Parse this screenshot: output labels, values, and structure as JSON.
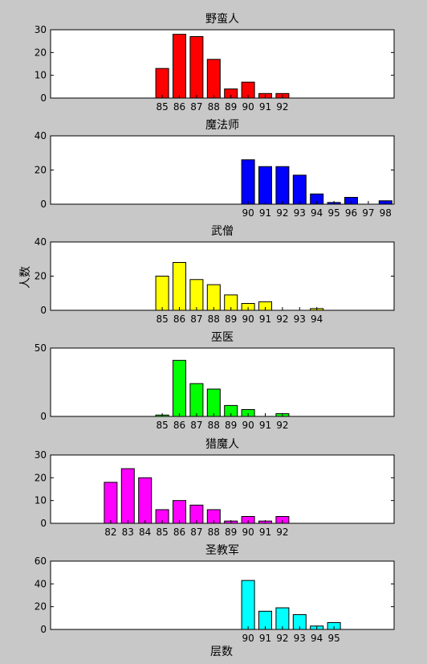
{
  "figure": {
    "ylabel": "人数",
    "xlabel": "层数",
    "background": "#c8c8c8"
  },
  "chart_data": [
    {
      "type": "bar",
      "title": "野蛮人",
      "color": "#ff0000",
      "ylim": [
        0,
        30
      ],
      "yticks": [
        0,
        10,
        20,
        30
      ],
      "xlim": [
        78.5,
        98.5
      ],
      "categories": [
        "85",
        "86",
        "87",
        "88",
        "89",
        "90",
        "91",
        "92"
      ],
      "x": [
        85,
        86,
        87,
        88,
        89,
        90,
        91,
        92
      ],
      "values": [
        13,
        28,
        27,
        17,
        4,
        7,
        2,
        2
      ]
    },
    {
      "type": "bar",
      "title": "魔法师",
      "color": "#0000ff",
      "ylim": [
        0,
        40
      ],
      "yticks": [
        0,
        20,
        40
      ],
      "xlim": [
        78.5,
        98.5
      ],
      "categories": [
        "90",
        "91",
        "92",
        "93",
        "94",
        "95",
        "96",
        "97",
        "98"
      ],
      "x": [
        90,
        91,
        92,
        93,
        94,
        95,
        96,
        97,
        98
      ],
      "values": [
        26,
        22,
        22,
        17,
        6,
        1,
        4,
        0,
        2
      ]
    },
    {
      "type": "bar",
      "title": "武僧",
      "color": "#ffff00",
      "ylim": [
        0,
        40
      ],
      "yticks": [
        0,
        20,
        40
      ],
      "xlim": [
        78.5,
        98.5
      ],
      "categories": [
        "85",
        "86",
        "87",
        "88",
        "89",
        "90",
        "91",
        "92",
        "93",
        "94"
      ],
      "x": [
        85,
        86,
        87,
        88,
        89,
        90,
        91,
        92,
        93,
        94
      ],
      "values": [
        20,
        28,
        18,
        15,
        9,
        4,
        5,
        0,
        0,
        1
      ]
    },
    {
      "type": "bar",
      "title": "巫医",
      "color": "#00ff00",
      "ylim": [
        0,
        50
      ],
      "yticks": [
        0,
        50
      ],
      "xlim": [
        78.5,
        98.5
      ],
      "categories": [
        "85",
        "86",
        "87",
        "88",
        "89",
        "90",
        "91",
        "92"
      ],
      "x": [
        85,
        86,
        87,
        88,
        89,
        90,
        91,
        92
      ],
      "values": [
        1,
        41,
        24,
        20,
        8,
        5,
        0,
        2
      ]
    },
    {
      "type": "bar",
      "title": "猎魔人",
      "color": "#ff00ff",
      "ylim": [
        0,
        30
      ],
      "yticks": [
        0,
        10,
        20,
        30
      ],
      "xlim": [
        78.5,
        98.5
      ],
      "categories": [
        "82",
        "83",
        "84",
        "85",
        "86",
        "87",
        "88",
        "89",
        "90",
        "91",
        "92"
      ],
      "x": [
        82,
        83,
        84,
        85,
        86,
        87,
        88,
        89,
        90,
        91,
        92
      ],
      "values": [
        18,
        24,
        20,
        6,
        10,
        8,
        6,
        1,
        3,
        1,
        3
      ]
    },
    {
      "type": "bar",
      "title": "圣教军",
      "color": "#00ffff",
      "ylim": [
        0,
        60
      ],
      "yticks": [
        0,
        20,
        40,
        60
      ],
      "xlim": [
        78.5,
        98.5
      ],
      "categories": [
        "90",
        "91",
        "92",
        "93",
        "94",
        "95"
      ],
      "x": [
        90,
        91,
        92,
        93,
        94,
        95
      ],
      "values": [
        43,
        16,
        19,
        13,
        3,
        6
      ]
    }
  ]
}
